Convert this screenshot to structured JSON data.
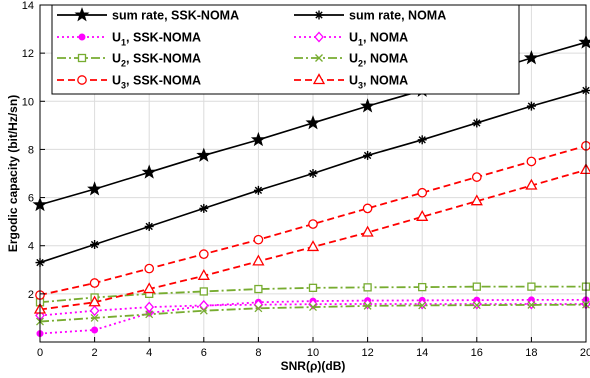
{
  "chart_data": {
    "type": "line",
    "xlabel": "SNR(ρ)(dB)",
    "ylabel": "Ergodic capacity (bit/Hz/sn)",
    "xlim": [
      0,
      20
    ],
    "ylim": [
      0,
      14
    ],
    "xticks": [
      0,
      2,
      4,
      6,
      8,
      10,
      12,
      14,
      16,
      18,
      20
    ],
    "yticks": [
      2,
      4,
      6,
      8,
      10,
      12,
      14
    ],
    "grid": true,
    "legend_position": "top",
    "x": [
      0,
      2,
      4,
      6,
      8,
      10,
      12,
      14,
      16,
      18,
      20
    ],
    "series": [
      {
        "name": "sum rate, SSK-NOMA",
        "color": "#000000",
        "dash": "solid",
        "marker": "star",
        "values": [
          5.7,
          6.35,
          7.05,
          7.75,
          8.4,
          9.1,
          9.8,
          10.45,
          11.1,
          11.8,
          12.45
        ]
      },
      {
        "name": "sum rate, NOMA",
        "color": "#000000",
        "dash": "solid",
        "marker": "asterisk",
        "values": [
          3.3,
          4.05,
          4.8,
          5.55,
          6.3,
          7.0,
          7.75,
          8.4,
          9.1,
          9.8,
          10.45
        ]
      },
      {
        "name": "U1, SSK-NOMA",
        "color": "#ff00ff",
        "dash": "dot",
        "marker": "dot",
        "values": [
          0.35,
          0.5,
          1.2,
          1.5,
          1.65,
          1.7,
          1.72,
          1.73,
          1.74,
          1.75,
          1.75
        ]
      },
      {
        "name": "U1, NOMA",
        "color": "#ff00ff",
        "dash": "dot",
        "marker": "diamond",
        "values": [
          1.1,
          1.3,
          1.45,
          1.52,
          1.55,
          1.57,
          1.58,
          1.58,
          1.58,
          1.58,
          1.58
        ]
      },
      {
        "name": "U2, SSK-NOMA",
        "color": "#77ac30",
        "dash": "dashdot",
        "marker": "square",
        "values": [
          1.65,
          1.85,
          2.0,
          2.1,
          2.2,
          2.25,
          2.27,
          2.28,
          2.3,
          2.3,
          2.3
        ]
      },
      {
        "name": "U2, NOMA",
        "color": "#77ac30",
        "dash": "dashdot",
        "marker": "x",
        "values": [
          0.85,
          1.0,
          1.15,
          1.3,
          1.4,
          1.45,
          1.5,
          1.52,
          1.53,
          1.54,
          1.55
        ]
      },
      {
        "name": "U3, SSK-NOMA",
        "color": "#ff0000",
        "dash": "dash",
        "marker": "circle",
        "values": [
          1.95,
          2.45,
          3.05,
          3.65,
          4.25,
          4.9,
          5.55,
          6.2,
          6.85,
          7.5,
          8.15
        ]
      },
      {
        "name": "U3, NOMA",
        "color": "#ff0000",
        "dash": "dash",
        "marker": "triangle",
        "values": [
          1.35,
          1.65,
          2.2,
          2.75,
          3.35,
          3.95,
          4.55,
          5.2,
          5.85,
          6.5,
          7.15
        ]
      }
    ],
    "legend": [
      {
        "prefix": "sum rate, SSK-NOMA",
        "sub": "",
        "suffix": ""
      },
      {
        "prefix": "sum rate, NOMA",
        "sub": "",
        "suffix": ""
      },
      {
        "prefix": "U",
        "sub": "1",
        "suffix": ", SSK-NOMA"
      },
      {
        "prefix": "U",
        "sub": "1",
        "suffix": ", NOMA"
      },
      {
        "prefix": "U",
        "sub": "2",
        "suffix": ", SSK-NOMA"
      },
      {
        "prefix": "U",
        "sub": "2",
        "suffix": ", NOMA"
      },
      {
        "prefix": "U",
        "sub": "3",
        "suffix": ", SSK-NOMA"
      },
      {
        "prefix": "U",
        "sub": "3",
        "suffix": ", NOMA"
      }
    ]
  }
}
